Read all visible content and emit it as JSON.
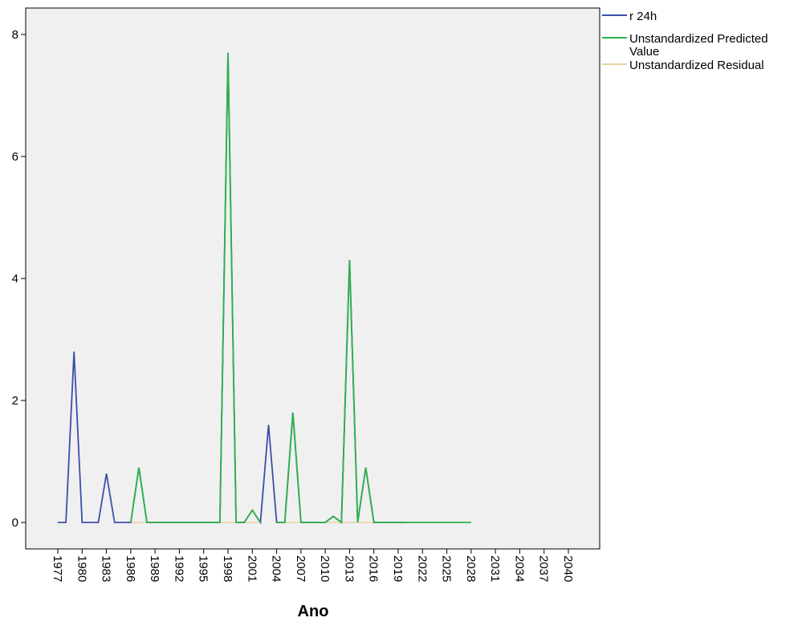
{
  "chart_data": {
    "type": "line",
    "xlabel": "Ano",
    "ylabel": "",
    "ylim": [
      -0.4,
      8.5
    ],
    "xlim": [
      1975,
      2043
    ],
    "y_ticks": [
      0,
      2,
      4,
      6,
      8
    ],
    "x_ticks": [
      1977,
      1980,
      1983,
      1986,
      1989,
      1992,
      1995,
      1998,
      2001,
      2004,
      2007,
      2010,
      2013,
      2016,
      2019,
      2022,
      2025,
      2028,
      2031,
      2034,
      2037,
      2040
    ],
    "grid": false,
    "background": "#f0f0f0",
    "legend_position": "top-right, outside plot",
    "series": [
      {
        "name": "r 24h",
        "color": "#3a4fa8",
        "x": [
          1977,
          1978,
          1979,
          1980,
          1981,
          1982,
          1983,
          1984,
          1985,
          1986,
          1987,
          1988,
          1989,
          1990,
          1991,
          1992,
          1993,
          1994,
          1995,
          1996,
          1997,
          1998,
          1999,
          2000,
          2001,
          2002,
          2003,
          2004,
          2005,
          2006,
          2007,
          2008,
          2009,
          2010,
          2011,
          2012,
          2013,
          2014,
          2015,
          2016,
          2017,
          2018,
          2019,
          2020
        ],
        "values": [
          0,
          0,
          2.8,
          0,
          0,
          0,
          0.8,
          0,
          0,
          0,
          0.9,
          0,
          0,
          0,
          0,
          0,
          0,
          0,
          0,
          0,
          0,
          7.7,
          0,
          0,
          0.2,
          0,
          1.6,
          0,
          0,
          1.8,
          0,
          0,
          0,
          0,
          0.1,
          0,
          4.3,
          0,
          0.9,
          0,
          0,
          0,
          0,
          0
        ]
      },
      {
        "name": "Unstandardized Predicted Value",
        "color": "#2db34a",
        "x": [
          1986,
          1987,
          1988,
          1989,
          1990,
          1991,
          1992,
          1993,
          1994,
          1995,
          1996,
          1997,
          1998,
          1999,
          2000,
          2001,
          2002,
          2003,
          2004,
          2005,
          2006,
          2007,
          2008,
          2009,
          2010,
          2011,
          2012,
          2013,
          2014,
          2015,
          2016,
          2017,
          2018,
          2019,
          2020,
          2021,
          2022,
          2023,
          2024,
          2025,
          2026,
          2027,
          2028
        ],
        "values": [
          0,
          0.9,
          0,
          0,
          0,
          0,
          0,
          0,
          0,
          0,
          0,
          0,
          7.7,
          0,
          0,
          0.2,
          0,
          null,
          0,
          0,
          1.8,
          0,
          0,
          0,
          0,
          0.1,
          0,
          4.3,
          0,
          0.9,
          0,
          0,
          0,
          0,
          0,
          0,
          0,
          0,
          0,
          0,
          0,
          0,
          0
        ]
      },
      {
        "name": "Unstandardized Residual",
        "color": "#e8d3a2",
        "x": [
          1986,
          1987,
          1988,
          1989,
          1990,
          1991,
          1992,
          1993,
          1994,
          1995,
          1996,
          1997,
          1998,
          1999,
          2000,
          2001,
          2002,
          2003,
          2004,
          2005,
          2006,
          2007,
          2008,
          2009,
          2010,
          2011,
          2012,
          2013,
          2014,
          2015,
          2016,
          2017,
          2018,
          2019,
          2020
        ],
        "values": [
          0,
          0,
          0,
          0,
          0,
          0,
          0,
          0,
          0,
          0,
          0,
          0,
          0,
          0,
          0,
          0,
          0,
          null,
          0,
          0,
          0,
          0,
          0,
          0,
          0,
          0,
          0,
          0,
          0,
          0,
          0,
          0,
          0,
          0,
          0
        ]
      }
    ]
  }
}
